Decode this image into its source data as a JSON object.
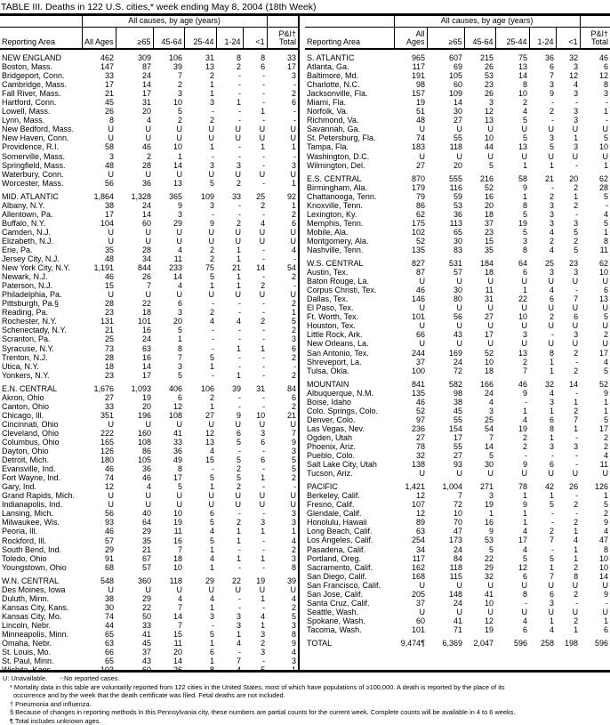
{
  "title": "TABLE III. Deaths in 122 U.S. cities,* week ending May 8, 2004 (18th Week)",
  "header": {
    "group": "All causes, by age (years)",
    "cols": [
      "Reporting Area",
      "All Ages",
      "≥65",
      "45-64",
      "25-44",
      "1-24",
      "<1",
      "P&I† Total"
    ]
  },
  "left": [
    [
      [
        "NEW ENGLAND",
        "462",
        "309",
        "106",
        "31",
        "8",
        "8",
        "33"
      ],
      [
        "Boston, Mass.",
        "147",
        "87",
        "39",
        "13",
        "2",
        "6",
        "17"
      ],
      [
        "Bridgeport, Conn.",
        "33",
        "24",
        "7",
        "2",
        "-",
        "-",
        "3"
      ],
      [
        "Cambridge, Mass.",
        "17",
        "14",
        "2",
        "1",
        "-",
        "-",
        "-"
      ],
      [
        "Fall River, Mass.",
        "21",
        "17",
        "3",
        "1",
        "-",
        "-",
        "2"
      ],
      [
        "Hartford, Conn.",
        "45",
        "31",
        "10",
        "3",
        "1",
        "-",
        "6"
      ],
      [
        "Lowell, Mass.",
        "26",
        "20",
        "5",
        "-",
        "-",
        "1",
        "-"
      ],
      [
        "Lynn, Mass.",
        "8",
        "4",
        "2",
        "2",
        "-",
        "-",
        "-"
      ],
      [
        "New Bedford, Mass.",
        "U",
        "U",
        "U",
        "U",
        "U",
        "U",
        "U"
      ],
      [
        "New Haven, Conn.",
        "U",
        "U",
        "U",
        "U",
        "U",
        "U",
        "U"
      ],
      [
        "Providence, R.I.",
        "58",
        "46",
        "10",
        "1",
        "-",
        "1",
        "1"
      ],
      [
        "Somerville, Mass.",
        "3",
        "2",
        "1",
        "-",
        "-",
        "-",
        "-"
      ],
      [
        "Springfield, Mass.",
        "48",
        "28",
        "14",
        "3",
        "3",
        "-",
        "3"
      ],
      [
        "Waterbury, Conn.",
        "U",
        "U",
        "U",
        "U",
        "U",
        "U",
        "U"
      ],
      [
        "Worcester, Mass.",
        "56",
        "36",
        "13",
        "5",
        "2",
        "-",
        "1"
      ]
    ],
    [
      [
        "MID. ATLANTIC",
        "1,864",
        "1,328",
        "365",
        "109",
        "33",
        "25",
        "92"
      ],
      [
        "Albany, N.Y.",
        "38",
        "24",
        "9",
        "3",
        "-",
        "2",
        "1"
      ],
      [
        "Allentown, Pa.",
        "17",
        "14",
        "3",
        "-",
        "-",
        "-",
        "2"
      ],
      [
        "Buffalo, N.Y.",
        "104",
        "60",
        "29",
        "9",
        "2",
        "4",
        "6"
      ],
      [
        "Camden, N.J.",
        "U",
        "U",
        "U",
        "U",
        "U",
        "U",
        "U"
      ],
      [
        "Elizabeth, N.J.",
        "U",
        "U",
        "U",
        "U",
        "U",
        "U",
        "U"
      ],
      [
        "Erie, Pa.",
        "35",
        "28",
        "4",
        "2",
        "1",
        "-",
        "4"
      ],
      [
        "Jersey City, N.J.",
        "48",
        "34",
        "11",
        "2",
        "1",
        "-",
        "-"
      ],
      [
        "New York City, N.Y.",
        "1,191",
        "844",
        "233",
        "75",
        "21",
        "14",
        "54"
      ],
      [
        "Newark, N.J.",
        "46",
        "26",
        "14",
        "5",
        "1",
        "-",
        "2"
      ],
      [
        "Paterson, N.J.",
        "15",
        "7",
        "4",
        "1",
        "1",
        "2",
        "-"
      ],
      [
        "Philadelphia, Pa.",
        "U",
        "U",
        "U",
        "U",
        "U",
        "U",
        "U"
      ],
      [
        "Pittsburgh, Pa.§",
        "28",
        "22",
        "6",
        "-",
        "-",
        "-",
        "2"
      ],
      [
        "Reading, Pa.",
        "23",
        "18",
        "3",
        "2",
        "-",
        "-",
        "1"
      ],
      [
        "Rochester, N.Y.",
        "131",
        "101",
        "20",
        "4",
        "4",
        "2",
        "5"
      ],
      [
        "Schenectady, N.Y.",
        "21",
        "16",
        "5",
        "-",
        "-",
        "-",
        "2"
      ],
      [
        "Scranton, Pa.",
        "25",
        "24",
        "1",
        "-",
        "-",
        "-",
        "3"
      ],
      [
        "Syracuse, N.Y.",
        "73",
        "63",
        "8",
        "-",
        "1",
        "1",
        "6"
      ],
      [
        "Trenton, N.J.",
        "28",
        "16",
        "7",
        "5",
        "-",
        "-",
        "2"
      ],
      [
        "Utica, N.Y.",
        "18",
        "14",
        "3",
        "1",
        "-",
        "-",
        "-"
      ],
      [
        "Yonkers, N.Y.",
        "23",
        "17",
        "5",
        "-",
        "1",
        "-",
        "2"
      ]
    ],
    [
      [
        "E.N. CENTRAL",
        "1,676",
        "1,093",
        "406",
        "106",
        "39",
        "31",
        "84"
      ],
      [
        "Akron, Ohio",
        "27",
        "19",
        "6",
        "2",
        "-",
        "-",
        "6"
      ],
      [
        "Canton, Ohio",
        "33",
        "20",
        "12",
        "1",
        "-",
        "-",
        "2"
      ],
      [
        "Chicago, Ill.",
        "351",
        "196",
        "108",
        "27",
        "9",
        "10",
        "21"
      ],
      [
        "Cincinnati, Ohio",
        "U",
        "U",
        "U",
        "U",
        "U",
        "U",
        "U"
      ],
      [
        "Cleveland, Ohio",
        "222",
        "160",
        "41",
        "12",
        "6",
        "3",
        "7"
      ],
      [
        "Columbus, Ohio",
        "165",
        "108",
        "33",
        "13",
        "5",
        "6",
        "9"
      ],
      [
        "Dayton, Ohio",
        "126",
        "86",
        "36",
        "4",
        "-",
        "-",
        "3"
      ],
      [
        "Detroit, Mich.",
        "180",
        "105",
        "49",
        "15",
        "5",
        "6",
        "5"
      ],
      [
        "Evansville, Ind.",
        "46",
        "36",
        "8",
        "-",
        "2",
        "-",
        "5"
      ],
      [
        "Fort Wayne, Ind.",
        "74",
        "46",
        "17",
        "5",
        "5",
        "1",
        "2"
      ],
      [
        "Gary, Ind.",
        "12",
        "4",
        "5",
        "1",
        "2",
        "-",
        "-"
      ],
      [
        "Grand Rapids, Mich.",
        "U",
        "U",
        "U",
        "U",
        "U",
        "U",
        "U"
      ],
      [
        "Indianapolis, Ind.",
        "U",
        "U",
        "U",
        "U",
        "U",
        "U",
        "U"
      ],
      [
        "Lansing, Mich.",
        "56",
        "40",
        "10",
        "6",
        "-",
        "-",
        "3"
      ],
      [
        "Milwaukee, Wis.",
        "93",
        "64",
        "19",
        "5",
        "2",
        "3",
        "3"
      ],
      [
        "Peoria, Ill.",
        "46",
        "29",
        "11",
        "4",
        "1",
        "1",
        "1"
      ],
      [
        "Rockford, Ill.",
        "57",
        "35",
        "16",
        "5",
        "1",
        "-",
        "4"
      ],
      [
        "South Bend, Ind.",
        "29",
        "21",
        "7",
        "1",
        "-",
        "-",
        "2"
      ],
      [
        "Toledo, Ohio",
        "91",
        "67",
        "18",
        "4",
        "1",
        "1",
        "3"
      ],
      [
        "Youngstown, Ohio",
        "68",
        "57",
        "10",
        "1",
        "-",
        "-",
        "8"
      ]
    ],
    [
      [
        "W.N. CENTRAL",
        "548",
        "360",
        "118",
        "29",
        "22",
        "19",
        "39"
      ],
      [
        "Des Moines, Iowa",
        "U",
        "U",
        "U",
        "U",
        "U",
        "U",
        "U"
      ],
      [
        "Duluth, Minn.",
        "38",
        "29",
        "4",
        "4",
        "-",
        "1",
        "4"
      ],
      [
        "Kansas City, Kans.",
        "30",
        "22",
        "7",
        "1",
        "-",
        "-",
        "2"
      ],
      [
        "Kansas City, Mo.",
        "74",
        "50",
        "14",
        "3",
        "3",
        "4",
        "5"
      ],
      [
        "Lincoln, Nebr.",
        "44",
        "33",
        "7",
        "-",
        "3",
        "1",
        "3"
      ],
      [
        "Minneapolis, Minn.",
        "65",
        "41",
        "15",
        "5",
        "1",
        "3",
        "8"
      ],
      [
        "Omaha, Nebr.",
        "63",
        "45",
        "11",
        "1",
        "4",
        "2",
        "9"
      ],
      [
        "St. Louis, Mo.",
        "66",
        "37",
        "20",
        "6",
        "-",
        "3",
        "4"
      ],
      [
        "St. Paul, Minn.",
        "65",
        "43",
        "14",
        "1",
        "7",
        "-",
        "3"
      ],
      [
        "Wichita, Kans.",
        "103",
        "60",
        "26",
        "8",
        "4",
        "5",
        "1"
      ]
    ]
  ],
  "right": [
    [
      [
        "S. ATLANTIC",
        "965",
        "607",
        "215",
        "75",
        "36",
        "32",
        "46"
      ],
      [
        "Atlanta, Ga.",
        "117",
        "69",
        "26",
        "13",
        "6",
        "3",
        "6"
      ],
      [
        "Baltimore, Md.",
        "191",
        "105",
        "53",
        "14",
        "7",
        "12",
        "12"
      ],
      [
        "Charlotte, N.C.",
        "98",
        "60",
        "23",
        "8",
        "3",
        "4",
        "8"
      ],
      [
        "Jacksonville, Fla.",
        "157",
        "109",
        "26",
        "10",
        "9",
        "3",
        "3"
      ],
      [
        "Miami, Fla.",
        "19",
        "14",
        "3",
        "2",
        "-",
        "-",
        "-"
      ],
      [
        "Norfolk, Va.",
        "51",
        "30",
        "12",
        "4",
        "2",
        "3",
        "1"
      ],
      [
        "Richmond, Va.",
        "48",
        "27",
        "13",
        "5",
        "-",
        "3",
        "-"
      ],
      [
        "Savannah, Ga.",
        "U",
        "U",
        "U",
        "U",
        "U",
        "U",
        "U"
      ],
      [
        "St. Petersburg, Fla.",
        "74",
        "55",
        "10",
        "5",
        "3",
        "1",
        "5"
      ],
      [
        "Tampa, Fla.",
        "183",
        "118",
        "44",
        "13",
        "5",
        "3",
        "10"
      ],
      [
        "Washington, D.C.",
        "U",
        "U",
        "U",
        "U",
        "U",
        "U",
        "U"
      ],
      [
        "Wilmington, Del.",
        "27",
        "20",
        "5",
        "1",
        "1",
        "-",
        "1"
      ]
    ],
    [
      [
        "E.S. CENTRAL",
        "870",
        "555",
        "216",
        "58",
        "21",
        "20",
        "62"
      ],
      [
        "Birmingham, Ala.",
        "179",
        "116",
        "52",
        "9",
        "-",
        "2",
        "28"
      ],
      [
        "Chattanooga, Tenn.",
        "79",
        "59",
        "16",
        "1",
        "2",
        "1",
        "5"
      ],
      [
        "Knoxville, Tenn.",
        "86",
        "53",
        "20",
        "8",
        "3",
        "2",
        "-"
      ],
      [
        "Lexington, Ky.",
        "62",
        "36",
        "18",
        "5",
        "3",
        "-",
        "4"
      ],
      [
        "Memphis, Tenn.",
        "175",
        "113",
        "37",
        "19",
        "3",
        "3",
        "5"
      ],
      [
        "Mobile, Ala.",
        "102",
        "65",
        "23",
        "5",
        "4",
        "5",
        "1"
      ],
      [
        "Montgomery, Ala.",
        "52",
        "30",
        "15",
        "3",
        "2",
        "2",
        "8"
      ],
      [
        "Nashville, Tenn.",
        "135",
        "83",
        "35",
        "8",
        "4",
        "5",
        "11"
      ]
    ],
    [
      [
        "W.S. CENTRAL",
        "827",
        "531",
        "184",
        "64",
        "25",
        "23",
        "62"
      ],
      [
        "Austin, Tex.",
        "87",
        "57",
        "18",
        "6",
        "3",
        "3",
        "10"
      ],
      [
        "Baton Rouge, La.",
        "U",
        "U",
        "U",
        "U",
        "U",
        "U",
        "U"
      ],
      [
        "Corpus Christi, Tex.",
        "46",
        "30",
        "11",
        "1",
        "4",
        "-",
        "6"
      ],
      [
        "Dallas, Tex.",
        "146",
        "80",
        "31",
        "22",
        "6",
        "7",
        "13"
      ],
      [
        "El Paso, Tex.",
        "U",
        "U",
        "U",
        "U",
        "U",
        "U",
        "U"
      ],
      [
        "Ft. Worth, Tex.",
        "101",
        "56",
        "27",
        "10",
        "2",
        "6",
        "5"
      ],
      [
        "Houston, Tex.",
        "U",
        "U",
        "U",
        "U",
        "U",
        "U",
        "U"
      ],
      [
        "Little Rock, Ark.",
        "66",
        "43",
        "17",
        "3",
        "-",
        "3",
        "2"
      ],
      [
        "New Orleans, La.",
        "U",
        "U",
        "U",
        "U",
        "U",
        "U",
        "U"
      ],
      [
        "San Antonio, Tex.",
        "244",
        "169",
        "52",
        "13",
        "8",
        "2",
        "17"
      ],
      [
        "Shreveport, La.",
        "37",
        "24",
        "10",
        "2",
        "1",
        "-",
        "4"
      ],
      [
        "Tulsa, Okla.",
        "100",
        "72",
        "18",
        "7",
        "1",
        "2",
        "5"
      ]
    ],
    [
      [
        "MOUNTAIN",
        "841",
        "582",
        "166",
        "46",
        "32",
        "14",
        "52"
      ],
      [
        "Albuquerque, N.M.",
        "135",
        "98",
        "24",
        "9",
        "4",
        "-",
        "9"
      ],
      [
        "Boise, Idaho",
        "46",
        "38",
        "4",
        "-",
        "3",
        "1",
        "1"
      ],
      [
        "Colo. Springs, Colo.",
        "52",
        "45",
        "3",
        "1",
        "1",
        "2",
        "1"
      ],
      [
        "Denver, Colo.",
        "97",
        "55",
        "25",
        "4",
        "6",
        "7",
        "5"
      ],
      [
        "Las Vegas, Nev.",
        "236",
        "154",
        "54",
        "19",
        "8",
        "1",
        "17"
      ],
      [
        "Ogden, Utah",
        "27",
        "17",
        "7",
        "2",
        "1",
        "-",
        "2"
      ],
      [
        "Phoenix, Ariz.",
        "78",
        "55",
        "14",
        "2",
        "3",
        "3",
        "2"
      ],
      [
        "Pueblo, Colo.",
        "32",
        "27",
        "5",
        "-",
        "-",
        "-",
        "4"
      ],
      [
        "Salt Lake City, Utah",
        "138",
        "93",
        "30",
        "9",
        "6",
        "-",
        "11"
      ],
      [
        "Tucson, Ariz.",
        "U",
        "U",
        "U",
        "U",
        "U",
        "U",
        "U"
      ]
    ],
    [
      [
        "PACIFIC",
        "1,421",
        "1,004",
        "271",
        "78",
        "42",
        "26",
        "126"
      ],
      [
        "Berkeley, Calif.",
        "12",
        "7",
        "3",
        "1",
        "1",
        "-",
        "1"
      ],
      [
        "Fresno, Calif.",
        "107",
        "72",
        "19",
        "9",
        "5",
        "2",
        "5"
      ],
      [
        "Glendale, Calif.",
        "12",
        "10",
        "1",
        "1",
        "-",
        "-",
        "2"
      ],
      [
        "Honolulu, Hawaii",
        "89",
        "70",
        "16",
        "1",
        "-",
        "2",
        "9"
      ],
      [
        "Long Beach, Calif.",
        "63",
        "47",
        "9",
        "4",
        "2",
        "1",
        "4"
      ],
      [
        "Los Angeles, Calif.",
        "254",
        "173",
        "53",
        "17",
        "7",
        "4",
        "47"
      ],
      [
        "Pasadena, Calif.",
        "34",
        "24",
        "5",
        "4",
        "-",
        "1",
        "8"
      ],
      [
        "Portland, Oreg.",
        "117",
        "84",
        "22",
        "5",
        "5",
        "1",
        "10"
      ],
      [
        "Sacramento, Calif.",
        "162",
        "118",
        "29",
        "12",
        "1",
        "2",
        "10"
      ],
      [
        "San Diego, Calif.",
        "168",
        "115",
        "32",
        "6",
        "7",
        "8",
        "14"
      ],
      [
        "San Francisco, Calif.",
        "U",
        "U",
        "U",
        "U",
        "U",
        "U",
        "U"
      ],
      [
        "San Jose, Calif.",
        "205",
        "148",
        "41",
        "8",
        "6",
        "2",
        "9"
      ],
      [
        "Santa Cruz, Calif.",
        "37",
        "24",
        "10",
        "-",
        "3",
        "-",
        "-"
      ],
      [
        "Seattle, Wash.",
        "U",
        "U",
        "U",
        "U",
        "U",
        "U",
        "U"
      ],
      [
        "Spokane, Wash.",
        "60",
        "41",
        "12",
        "4",
        "1",
        "2",
        "1"
      ],
      [
        "Tacoma, Wash.",
        "101",
        "71",
        "19",
        "6",
        "4",
        "1",
        "6"
      ]
    ],
    [
      [
        "TOTAL",
        "9,474¶",
        "6,369",
        "2,047",
        "596",
        "258",
        "198",
        "596"
      ]
    ]
  ],
  "notes": {
    "legend": "U: Unavailable.       -:No reported cases.",
    "star": "* Mortality data in this table are voluntarily reported from 122 cities in the United States, most of which have populations of ≥100,000. A death is reported by the place of its",
    "star2": "occurrence and by the week that the death certificate was filed. Fetal deaths are not included.",
    "dagger": "† Pneumonia and influenza.",
    "section": "§ Because of changes in reporting methods in this Pennsylvania city, these numbers are partial counts for the current week. Complete counts will be available in 4 to 6 weeks.",
    "pilcrow": "¶ Total includes unknown ages."
  }
}
